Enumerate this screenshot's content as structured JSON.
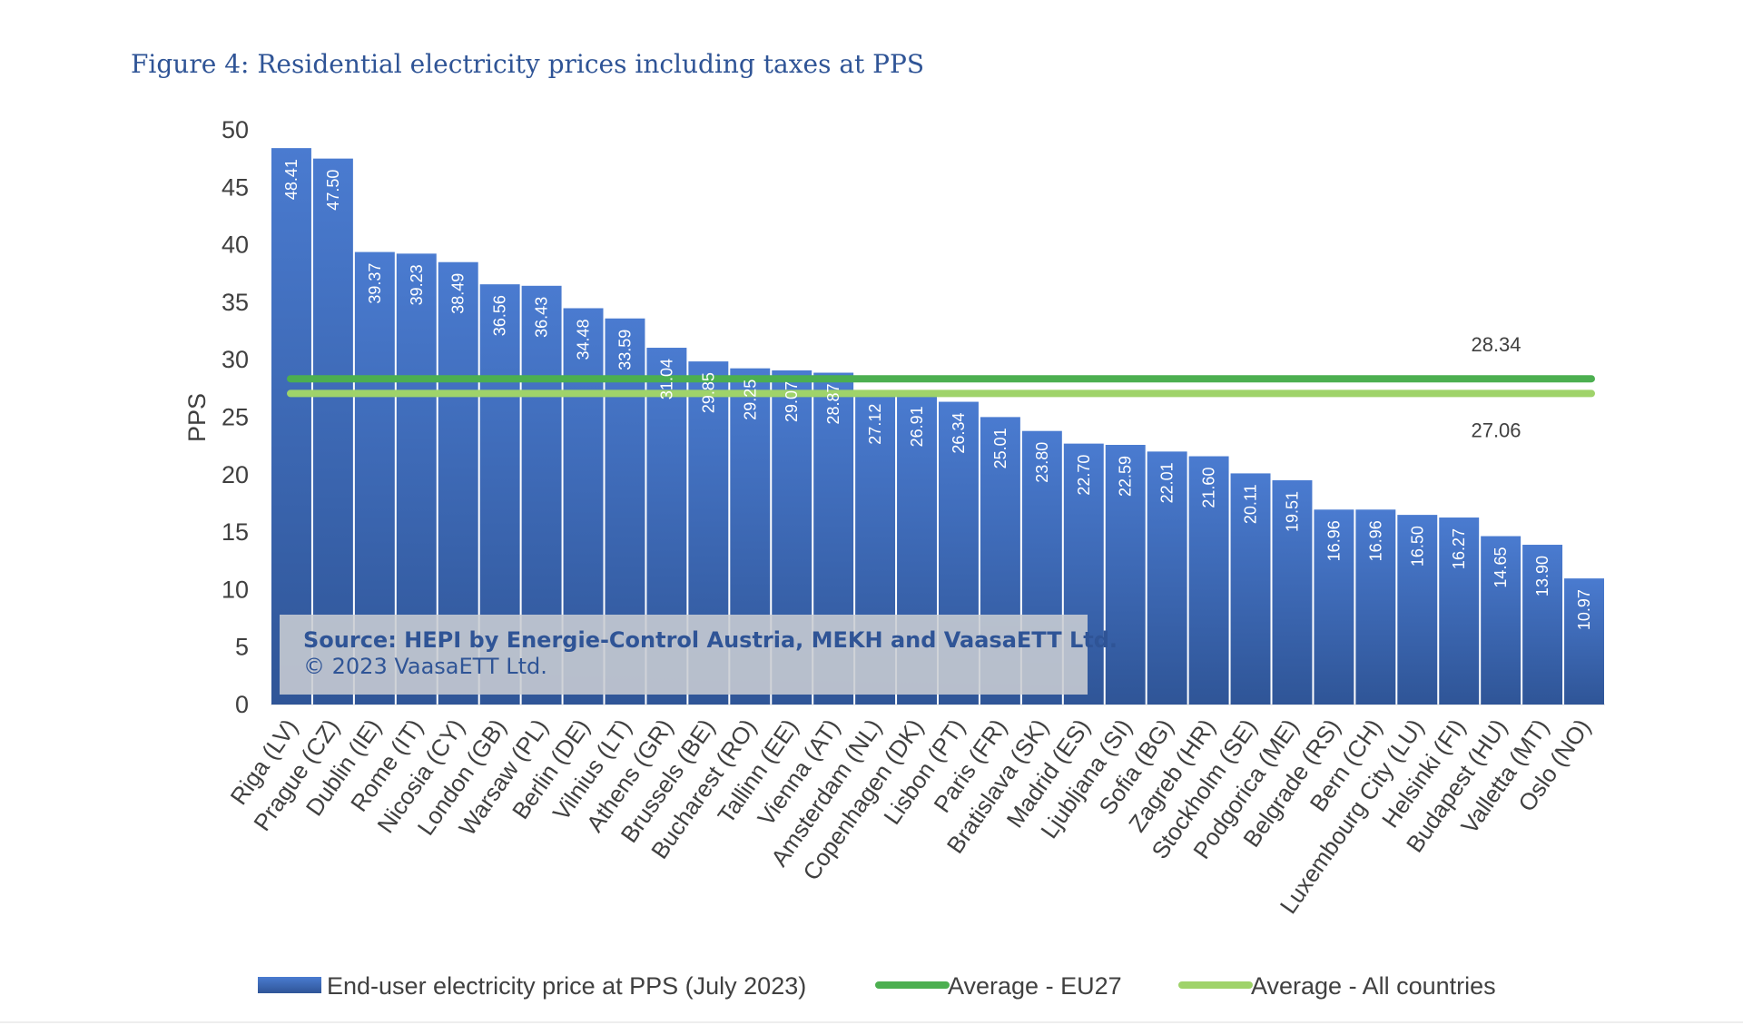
{
  "figure_title": "Figure 4: Residential electricity prices including taxes at PPS",
  "source_box": {
    "line1": "Source: HEPI by Energie-Control Austria, MEKH and VaasaETT Ltd.",
    "line2": "© 2023 VaasaETT Ltd."
  },
  "colors": {
    "bar": "#4472c4",
    "bar_dark": "#2f5597",
    "avg_eu27": "#4caf50",
    "avg_all": "#9fd36a",
    "title": "#2f5496"
  },
  "chart_data": {
    "type": "bar",
    "title": "",
    "xlabel": "",
    "ylabel": "PPS",
    "ylim": [
      0,
      50
    ],
    "yticks": [
      0,
      5,
      10,
      15,
      20,
      25,
      30,
      35,
      40,
      45,
      50
    ],
    "grid": false,
    "legend_position": "bottom",
    "categories": [
      "Riga (LV)",
      "Prague (CZ)",
      "Dublin (IE)",
      "Rome (IT)",
      "Nicosia (CY)",
      "London (GB)",
      "Warsaw (PL)",
      "Berlin (DE)",
      "Vilnius (LT)",
      "Athens (GR)",
      "Brussels (BE)",
      "Bucharest (RO)",
      "Tallinn (EE)",
      "Vienna (AT)",
      "Amsterdam (NL)",
      "Copenhagen (DK)",
      "Lisbon (PT)",
      "Paris (FR)",
      "Bratislava (SK)",
      "Madrid (ES)",
      "Ljubljana (SI)",
      "Sofia (BG)",
      "Zagreb (HR)",
      "Stockholm (SE)",
      "Podgorica (ME)",
      "Belgrade (RS)",
      "Bern (CH)",
      "Luxembourg City (LU)",
      "Helsinki (FI)",
      "Budapest (HU)",
      "Valletta (MT)",
      "Oslo (NO)"
    ],
    "series": [
      {
        "name": "End-user electricity price at PPS (July 2023)",
        "values": [
          48.41,
          47.5,
          39.37,
          39.23,
          38.49,
          36.56,
          36.43,
          34.48,
          33.59,
          31.04,
          29.85,
          29.25,
          29.07,
          28.87,
          27.12,
          26.91,
          26.34,
          25.01,
          23.8,
          22.7,
          22.59,
          22.01,
          21.6,
          20.11,
          19.51,
          16.96,
          16.96,
          16.5,
          16.27,
          14.65,
          13.9,
          10.97
        ],
        "labels": [
          "48.41",
          "47.50",
          "39.37",
          "39.23",
          "38.49",
          "36.56",
          "36.43",
          "34.48",
          "33.59",
          "31.04",
          "29.85",
          "29.25",
          "29.07",
          "28.87",
          "27.12",
          "26.91",
          "26.34",
          "25.01",
          "23.80",
          "22.70",
          "22.59",
          "22.01",
          "21.60",
          "20.11",
          "19.51",
          "16.96",
          "16.96",
          "16.50",
          "16.27",
          "14.65",
          "13.90",
          "10.97"
        ]
      }
    ],
    "reference_lines": [
      {
        "name": "Average - EU27",
        "value": 28.34,
        "label": "28.34"
      },
      {
        "name": "Average - All countries",
        "value": 27.06,
        "label": "27.06"
      }
    ]
  }
}
